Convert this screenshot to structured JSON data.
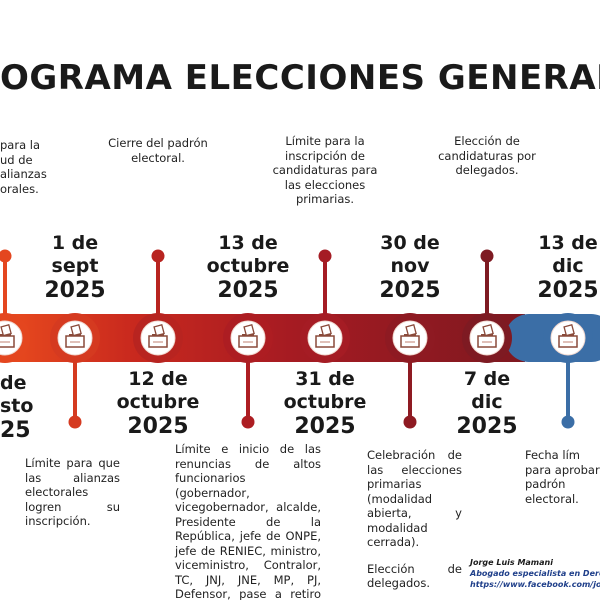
{
  "title": "OGRAMA ELECCIONES GENERALE",
  "events": [
    {
      "date": [
        "de",
        "sto",
        "25"
      ],
      "text": [
        "para la",
        "ud de",
        "alianzas",
        "orales."
      ]
    },
    {
      "date": [
        "1 de",
        "sept",
        "2025"
      ],
      "text": [
        "Límite para que las alianzas electorales logren su inscripción."
      ]
    },
    {
      "date": [
        "12 de",
        "octubre",
        "2025"
      ],
      "text": [
        "Cierre del padrón electoral."
      ]
    },
    {
      "date": [
        "13 de",
        "octubre",
        "2025"
      ],
      "text": [
        "Límite e inicio de las renuncias de altos funcionarios (gobernador, vicegobernador, alcalde, Presidente de la República, jefe de ONPE, jefe de RENIEC, ministro, viceministro, Contralor, TC, JNJ, JNE, MP, PJ, Defensor, pase a retiro de FFAA y PNP, ."
      ]
    },
    {
      "date": [
        "31 de",
        "octubre",
        "2025"
      ],
      "text": [
        "Límite para la inscripción de candidaturas para las elecciones primarias."
      ]
    },
    {
      "date": [
        "30 de",
        "nov",
        "2025"
      ],
      "text": [
        "Celebración de las elecciones primarias (modalidad abierta, y modalidad cerrada).",
        "Elección de delegados."
      ]
    },
    {
      "date": [
        "7 de",
        "dic",
        "2025"
      ],
      "text": [
        "Elección de candidaturas por delegados."
      ]
    },
    {
      "date": [
        "13 de",
        "dic",
        "2025"
      ],
      "text": [
        "Fecha lím",
        "para aprobar",
        "padrón",
        "electoral."
      ]
    }
  ],
  "credit": [
    "Jorge Luis Mamani",
    "Abogado especialista en Derec",
    "https://www.facebook.com/jorg"
  ]
}
